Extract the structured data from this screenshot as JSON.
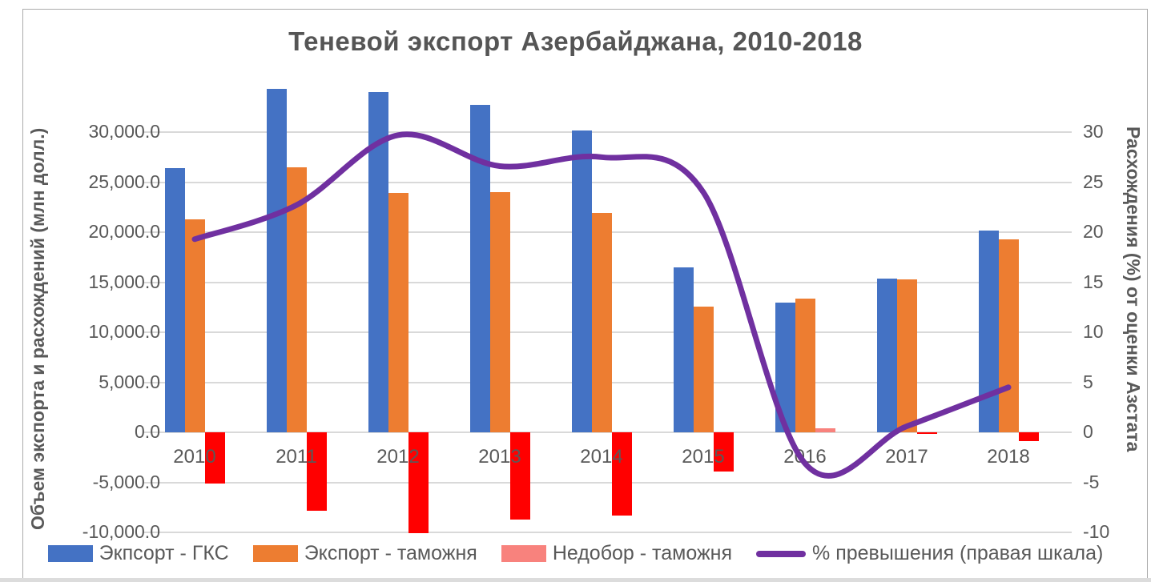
{
  "title": "Теневой экспорт Азербайджана, 2010-2018",
  "left_axis": {
    "title": "Объем экспорта и расхождений (млн долл.)",
    "ticks": [
      {
        "label": "30,000.0",
        "value": 30000
      },
      {
        "label": "25,000.0",
        "value": 25000
      },
      {
        "label": "20,000.0",
        "value": 20000
      },
      {
        "label": "15,000.0",
        "value": 15000
      },
      {
        "label": "10,000.0",
        "value": 10000
      },
      {
        "label": "5,000.0",
        "value": 5000
      },
      {
        "label": "0.0",
        "value": 0
      },
      {
        "label": "-5,000.0",
        "value": -5000
      },
      {
        "label": "-10,000.0",
        "value": -10000
      }
    ]
  },
  "right_axis": {
    "title": "Расхождения (%) от оценки Азстата",
    "ticks": [
      {
        "label": "30",
        "value": 30
      },
      {
        "label": "25",
        "value": 25
      },
      {
        "label": "20",
        "value": 20
      },
      {
        "label": "15",
        "value": 15
      },
      {
        "label": "10",
        "value": 10
      },
      {
        "label": "5",
        "value": 5
      },
      {
        "label": "0",
        "value": 0
      },
      {
        "label": "-5",
        "value": -5
      },
      {
        "label": "-10",
        "value": -10
      }
    ]
  },
  "legend": [
    {
      "label": "Экпсорт - ГКС",
      "swatch": "bar",
      "color": "#4472C4"
    },
    {
      "label": "Экспорт - таможня",
      "swatch": "bar",
      "color": "#ED7D31"
    },
    {
      "label": "Недобор - таможня",
      "swatch": "bar",
      "color": "#F8827D"
    },
    {
      "label": "% превышения (правая шкала)",
      "swatch": "line",
      "color": "#7030A0"
    }
  ],
  "colors": {
    "bar_gks": "#4472C4",
    "bar_customs": "#ED7D31",
    "bar_shortfall_positive": "#F8827D",
    "bar_shortfall_negative": "#FF0000",
    "line_pct": "#7030A0",
    "text": "#595959",
    "gridline": "#D9D9D9"
  },
  "chart_data": {
    "type": "bar",
    "subtype": "grouped bars + smoothed line on secondary axis",
    "title": "Теневой экспорт Азербайджана, 2010-2018",
    "categories": [
      "2010",
      "2011",
      "2012",
      "2013",
      "2014",
      "2015",
      "2016",
      "2017",
      "2018"
    ],
    "series": [
      {
        "name": "Экпсорт - ГКС",
        "type": "bar",
        "axis": "left",
        "color": "#4472C4",
        "values": [
          26400,
          34300,
          34000,
          32700,
          30200,
          16500,
          13000,
          15400,
          20200
        ]
      },
      {
        "name": "Экспорт - таможня",
        "type": "bar",
        "axis": "left",
        "color": "#ED7D31",
        "values": [
          21300,
          26500,
          23900,
          24000,
          21900,
          12600,
          13400,
          15300,
          19300
        ]
      },
      {
        "name": "Недобор - таможня",
        "type": "bar",
        "axis": "left",
        "color": "#F8827D",
        "negative_color": "#FF0000",
        "values": [
          -5100,
          -7800,
          -10100,
          -8700,
          -8300,
          -3900,
          400,
          -100,
          -900
        ]
      },
      {
        "name": "% превышения (правая шкала)",
        "type": "line",
        "axis": "right",
        "color": "#7030A0",
        "smooth": true,
        "values": [
          19.3,
          22.7,
          29.7,
          26.6,
          27.5,
          24.0,
          -3.1,
          0.6,
          4.5
        ]
      }
    ],
    "ylabel_left": "Объем экспорта и расхождений (млн долл.)",
    "ylabel_right": "Расхождения (%) от оценки Азстата",
    "ylim_left": [
      -10000,
      35000
    ],
    "ylim_right": [
      -10,
      35
    ],
    "grid": true,
    "legend_position": "bottom"
  }
}
